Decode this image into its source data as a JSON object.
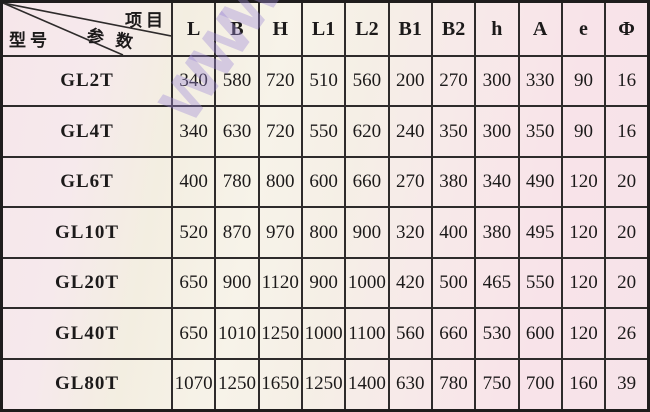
{
  "table": {
    "corner": {
      "top_right_label": "项目",
      "middle_label": "参 数",
      "bottom_left_label": "型号"
    },
    "columns": [
      "L",
      "B",
      "H",
      "L1",
      "L2",
      "B1",
      "B2",
      "h",
      "A",
      "e",
      "Φ"
    ],
    "rows": [
      {
        "model": "GL2T",
        "values": [
          "340",
          "580",
          "720",
          "510",
          "560",
          "200",
          "270",
          "300",
          "330",
          "90",
          "16"
        ]
      },
      {
        "model": "GL4T",
        "values": [
          "340",
          "630",
          "720",
          "550",
          "620",
          "240",
          "350",
          "300",
          "350",
          "90",
          "16"
        ]
      },
      {
        "model": "GL6T",
        "values": [
          "400",
          "780",
          "800",
          "600",
          "660",
          "270",
          "380",
          "340",
          "490",
          "120",
          "20"
        ]
      },
      {
        "model": "GL10T",
        "values": [
          "520",
          "870",
          "970",
          "800",
          "900",
          "320",
          "400",
          "380",
          "495",
          "120",
          "20"
        ]
      },
      {
        "model": "GL20T",
        "values": [
          "650",
          "900",
          "1120",
          "900",
          "1000",
          "420",
          "500",
          "465",
          "550",
          "120",
          "20"
        ]
      },
      {
        "model": "GL40T",
        "values": [
          "650",
          "1010",
          "1250",
          "1000",
          "1100",
          "560",
          "660",
          "530",
          "600",
          "120",
          "26"
        ]
      },
      {
        "model": "GL80T",
        "values": [
          "1070",
          "1250",
          "1650",
          "1250",
          "1400",
          "630",
          "780",
          "750",
          "700",
          "160",
          "39"
        ]
      }
    ],
    "watermark": "WWW"
  },
  "colors": {
    "grid_line": "#2e2b2b",
    "bg_pink": "#f8e3e9",
    "bg_cream": "#f3eee1",
    "watermark": "#9e8ad8"
  }
}
